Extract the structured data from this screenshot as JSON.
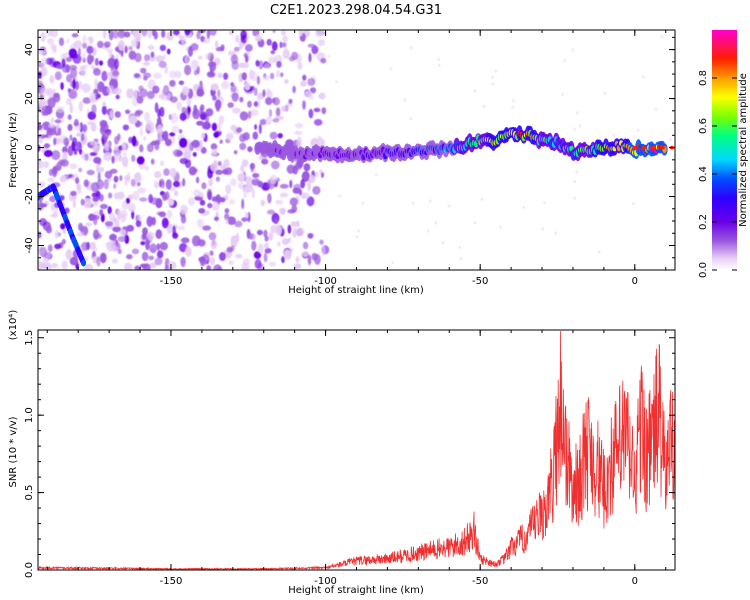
{
  "figure": {
    "title": "C2E1.2023.298.04.54.G31"
  },
  "chart_data": [
    {
      "type": "heatmap",
      "xlabel": "Height of straight line (km)",
      "ylabel": "Frequency (Hz)",
      "xlim": [
        -193,
        13
      ],
      "ylim": [
        -50,
        48
      ],
      "x_ticks": [
        -150,
        -100,
        -50,
        0
      ],
      "y_ticks": [
        -40,
        -20,
        0,
        20,
        40
      ],
      "colorbar": {
        "label": "Normalized spectral amplitude",
        "range": [
          0,
          1
        ],
        "ticks": [
          0.0,
          0.2,
          0.4,
          0.6,
          0.8
        ],
        "colors": [
          "#ffffff",
          "#e6ccf5",
          "#9b59e0",
          "#6a00e8",
          "#2e00ff",
          "#0050ff",
          "#00d8ff",
          "#00ff80",
          "#7cff00",
          "#ffff00",
          "#ff9a00",
          "#ff1f00",
          "#ff00cc"
        ]
      },
      "ridge": {
        "x": [
          -122,
          -115,
          -108,
          -100,
          -90,
          -80,
          -70,
          -60,
          -55,
          -50,
          -45,
          -40,
          -35,
          -30,
          -25,
          -20,
          -15,
          -10,
          -5,
          0,
          5,
          10
        ],
        "y": [
          0,
          -1,
          -3,
          -2,
          -3,
          -2,
          -2,
          0,
          1,
          3,
          3,
          5,
          5,
          3,
          2,
          -2,
          -1,
          0,
          1,
          -1,
          0,
          0
        ],
        "peak": [
          0.15,
          0.2,
          0.2,
          0.25,
          0.25,
          0.3,
          0.35,
          0.45,
          0.5,
          0.6,
          0.7,
          0.8,
          0.8,
          0.6,
          0.5,
          0.55,
          0.6,
          0.75,
          0.8,
          0.85,
          0.9,
          0.95
        ]
      },
      "diagonal_track": {
        "x": [
          -193,
          -188,
          -182,
          -178
        ],
        "y": [
          -20,
          -16,
          -36,
          -48
        ]
      },
      "noisy_region_x": [
        -193,
        -100
      ]
    },
    {
      "type": "line",
      "xlabel": "Height of straight line (km)",
      "ylabel": "SNR (10 * v/v)",
      "y_multiplier": "(x10⁴)",
      "xlim": [
        -193,
        13
      ],
      "ylim": [
        0,
        1.55
      ],
      "x_ticks": [
        -150,
        -100,
        -50,
        0
      ],
      "y_ticks": [
        0.0,
        0.5,
        1.0,
        1.5
      ],
      "y_ticklabels": [
        "0.0",
        "0.5",
        "1.0",
        "1.5"
      ],
      "series": [
        {
          "color": "#f03030",
          "x": [
            -193,
            -150,
            -120,
            -100,
            -95,
            -90,
            -80,
            -70,
            -65,
            -60,
            -55,
            -52,
            -50,
            -45,
            -42,
            -40,
            -35,
            -30,
            -28,
            -26,
            -25,
            -24,
            -22,
            -20,
            -18,
            -15,
            -12,
            -10,
            -8,
            -5,
            -3,
            0,
            2,
            4,
            6,
            8,
            9,
            10,
            11,
            12,
            13
          ],
          "y": [
            0.02,
            0.01,
            0.01,
            0.02,
            0.05,
            0.08,
            0.1,
            0.15,
            0.18,
            0.2,
            0.25,
            0.35,
            0.1,
            0.05,
            0.1,
            0.2,
            0.3,
            0.5,
            0.6,
            0.9,
            1.3,
            1.5,
            1.0,
            0.7,
            0.8,
            1.1,
            0.9,
            0.7,
            0.9,
            1.1,
            1.2,
            0.8,
            1.3,
            1.0,
            1.2,
            1.45,
            1.0,
            0.9,
            1.0,
            1.25,
            1.2
          ]
        }
      ]
    }
  ]
}
